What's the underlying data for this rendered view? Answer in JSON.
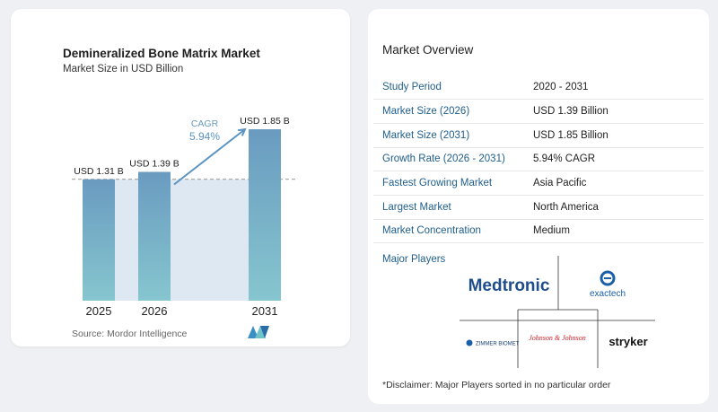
{
  "chart_data": {
    "type": "bar",
    "title": "Demineralized Bone Matrix Market",
    "subtitle": "Market Size in USD Billion",
    "categories": [
      "2025",
      "2026",
      "2031"
    ],
    "values": [
      1.31,
      1.39,
      1.85
    ],
    "data_labels": [
      "USD 1.31 B",
      "USD 1.39 B",
      "USD 1.85 B"
    ],
    "annotation": {
      "label": "CAGR",
      "value": "5.94%"
    },
    "xlabel": "",
    "ylabel": "",
    "ylim": [
      0,
      1.85
    ],
    "grid": false,
    "colors": {
      "bar_top": "#6a9bc0",
      "bar_bottom": "#86c6cf",
      "arrow": "#5b93c2",
      "band": "#dde8f2"
    }
  },
  "source_text": "Source:  Mordor Intelligence",
  "overview": {
    "title": "Market Overview",
    "rows": [
      {
        "key": "Study Period",
        "value": "2020 - 2031"
      },
      {
        "key": "Market Size (2026)",
        "value": "USD 1.39 Billion"
      },
      {
        "key": "Market Size (2031)",
        "value": "USD 1.85 Billion"
      },
      {
        "key": "Growth Rate (2026 - 2031)",
        "value": "5.94% CAGR"
      },
      {
        "key": "Fastest Growing Market",
        "value": "Asia Pacific"
      },
      {
        "key": "Largest Market",
        "value": "North America"
      },
      {
        "key": "Market Concentration",
        "value": "Medium"
      }
    ]
  },
  "major_players": {
    "title": "Major Players",
    "logos": [
      "Medtronic",
      "exactech",
      "ZIMMER BIOMET",
      "Johnson & Johnson",
      "stryker"
    ]
  },
  "disclaimer": "*Disclaimer: Major Players sorted in no particular order"
}
